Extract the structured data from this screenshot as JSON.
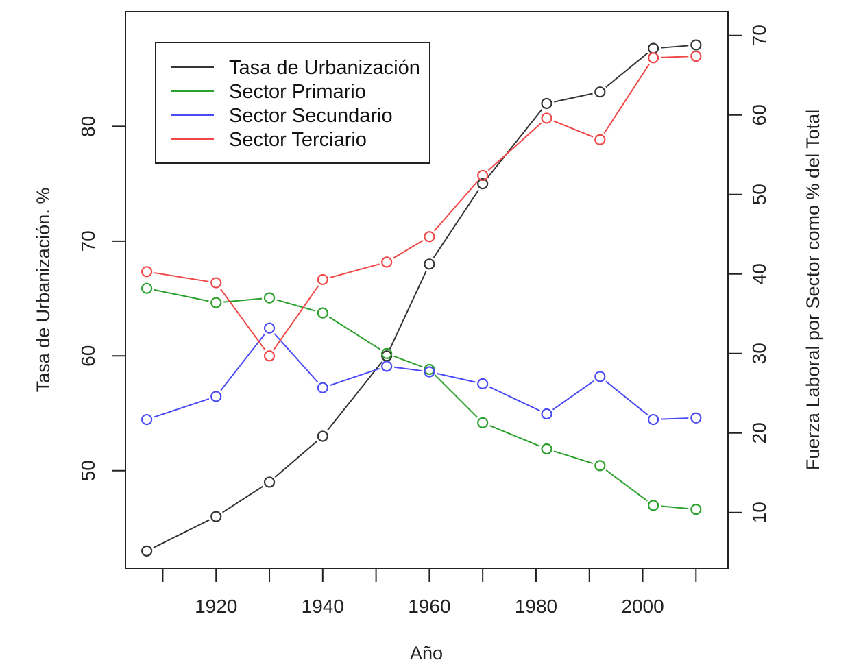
{
  "chart_data": {
    "type": "line",
    "xlabel": "Año",
    "ylabel_left": "Tasa de Urbanización. %",
    "ylabel_right": "Fuerza Laboral por Sector como % del Total",
    "xlim": [
      1903,
      2016
    ],
    "ylim_left": [
      41.5,
      90
    ],
    "ylim_right": [
      3,
      73
    ],
    "x_ticks": [
      1910,
      1920,
      1930,
      1940,
      1950,
      1960,
      1970,
      1980,
      1990,
      2000,
      2010
    ],
    "x_tick_labels": [
      "1920",
      "1940",
      "1960",
      "1980",
      "2000"
    ],
    "x_tick_label_values": [
      1920,
      1940,
      1960,
      1980,
      2000
    ],
    "y_left_ticks": [
      50,
      60,
      70,
      80
    ],
    "y_left_tick_labels": [
      "50",
      "60",
      "70",
      "80"
    ],
    "y_right_ticks": [
      10,
      20,
      30,
      40,
      50,
      60,
      70
    ],
    "y_right_tick_labels": [
      "10",
      "20",
      "30",
      "40",
      "50",
      "60",
      "70"
    ],
    "legend_position": "top-left",
    "grid": false,
    "series": [
      {
        "name": "Tasa de Urbanización",
        "color": "#333333",
        "axis": "left",
        "x": [
          1907,
          1920,
          1930,
          1940,
          1952,
          1960,
          1970,
          1982,
          1992,
          2002,
          2010
        ],
        "y": [
          43,
          46,
          49,
          53,
          60,
          68,
          75,
          82,
          83,
          86.8,
          87.1
        ]
      },
      {
        "name": "Sector Primario",
        "color": "#2ca02c",
        "axis": "right",
        "x": [
          1907,
          1920,
          1930,
          1940,
          1952,
          1960,
          1970,
          1982,
          1992,
          2002,
          2010
        ],
        "y": [
          38.2,
          36.4,
          37,
          35.1,
          30,
          28,
          21.3,
          18,
          15.9,
          10.9,
          10.4
        ]
      },
      {
        "name": "Sector Secundario",
        "color": "#4b4bf5",
        "axis": "right",
        "x": [
          1907,
          1920,
          1930,
          1940,
          1952,
          1960,
          1970,
          1982,
          1992,
          2002,
          2010
        ],
        "y": [
          21.7,
          24.6,
          33.2,
          25.7,
          28.4,
          27.7,
          26.2,
          22.4,
          27.1,
          21.7,
          21.9
        ]
      },
      {
        "name": "Sector Terciario",
        "color": "#f04848",
        "axis": "right",
        "x": [
          1907,
          1920,
          1930,
          1940,
          1952,
          1960,
          1970,
          1982,
          1992,
          2002,
          2010
        ],
        "y": [
          40.3,
          38.9,
          29.7,
          39.3,
          41.5,
          44.7,
          52.4,
          59.6,
          56.9,
          67.2,
          67.4
        ]
      }
    ]
  }
}
